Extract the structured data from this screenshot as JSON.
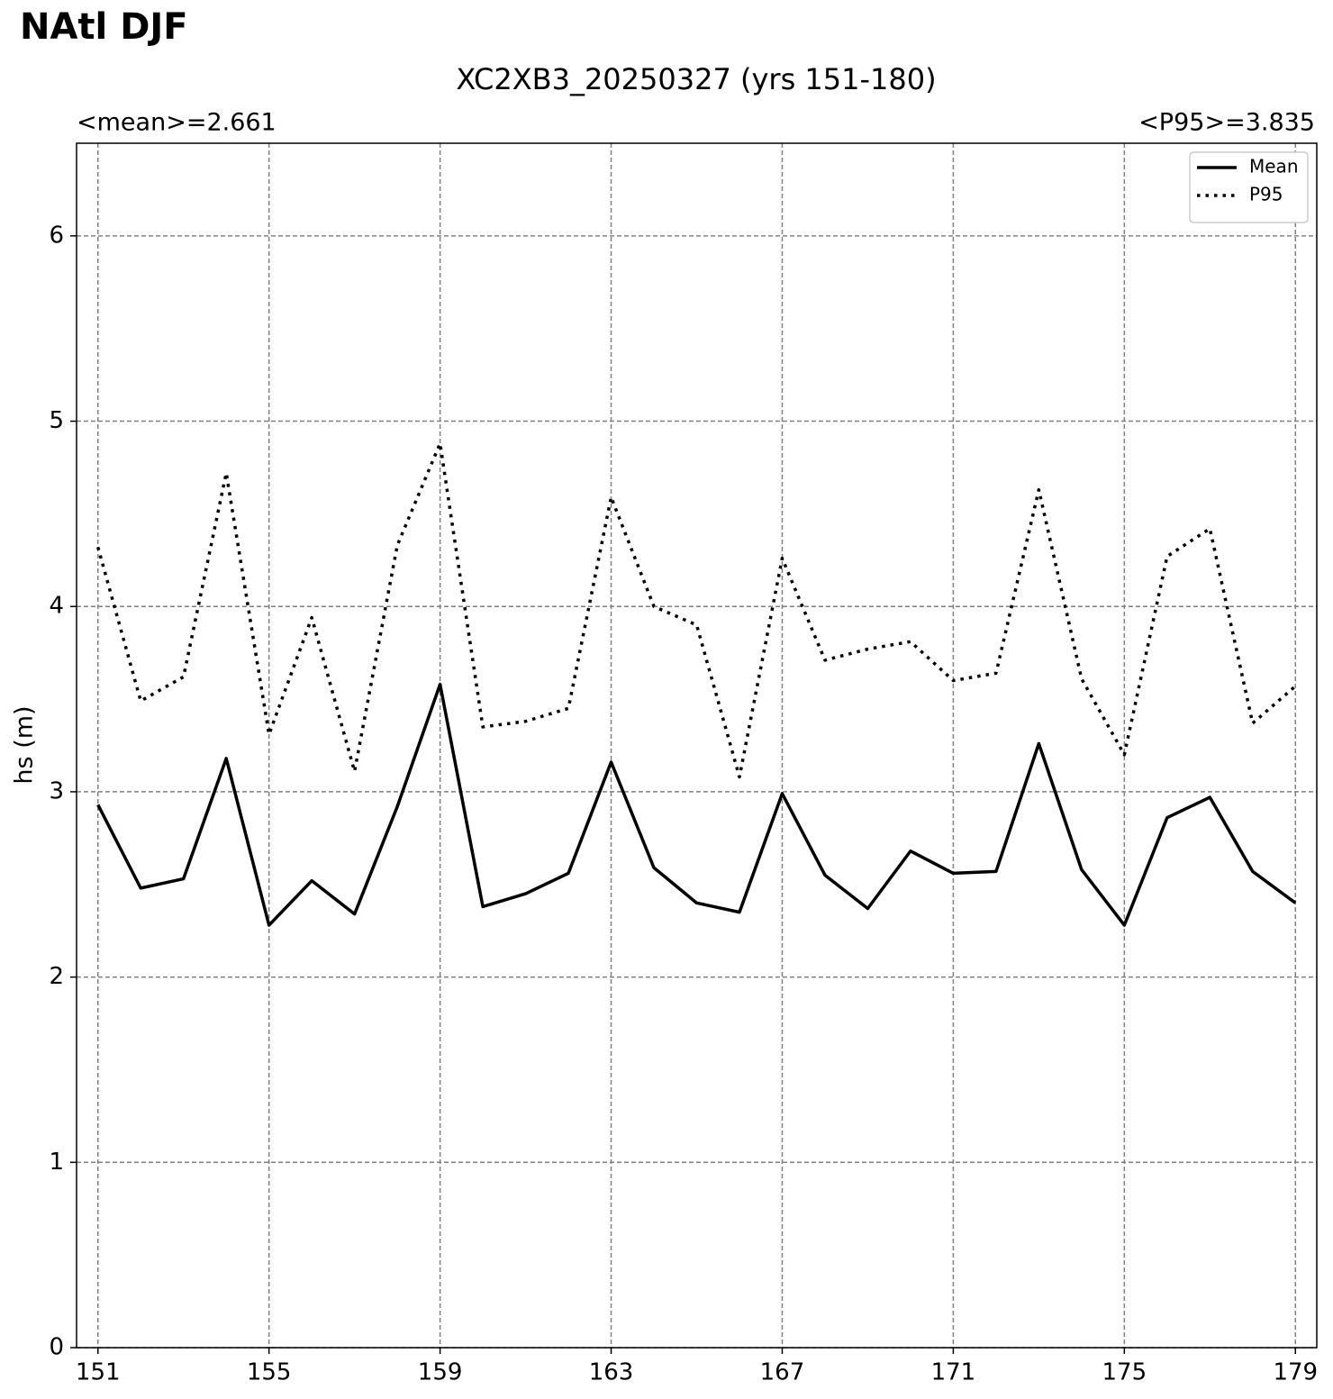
{
  "chart_data": {
    "type": "line",
    "suptitle": "NAtl DJF",
    "title": "XC2XB3_20250327 (yrs 151-180)",
    "left_title": "<mean>=2.661",
    "right_title": "<P95>=3.835",
    "ylabel": "hs (m)",
    "x": [
      151,
      152,
      153,
      154,
      155,
      156,
      157,
      158,
      159,
      160,
      161,
      162,
      163,
      164,
      165,
      166,
      167,
      168,
      169,
      170,
      171,
      172,
      173,
      174,
      175,
      176,
      177,
      178,
      179
    ],
    "series": [
      {
        "name": "Mean",
        "color": "#000000",
        "linestyle": "solid",
        "values": [
          2.93,
          2.48,
          2.53,
          3.18,
          2.28,
          2.52,
          2.34,
          2.92,
          3.58,
          2.38,
          2.45,
          2.56,
          3.16,
          2.59,
          2.4,
          2.35,
          2.99,
          2.55,
          2.37,
          2.68,
          2.56,
          2.57,
          3.26,
          2.58,
          2.28,
          2.86,
          2.97,
          2.57,
          2.4
        ]
      },
      {
        "name": "P95",
        "color": "#000000",
        "linestyle": "dotted",
        "values": [
          4.32,
          3.49,
          3.62,
          4.72,
          3.31,
          3.94,
          3.11,
          4.33,
          4.88,
          3.35,
          3.38,
          3.45,
          4.59,
          4.0,
          3.9,
          3.08,
          4.26,
          3.71,
          3.77,
          3.81,
          3.6,
          3.64,
          4.63,
          3.61,
          3.2,
          4.27,
          4.42,
          3.37,
          3.57
        ]
      }
    ],
    "xlim": [
      150.5,
      179.5
    ],
    "xticks": [
      151,
      155,
      159,
      163,
      167,
      171,
      175,
      179
    ],
    "ylim": [
      0,
      6.5
    ],
    "yticks": [
      0,
      1,
      2,
      3,
      4,
      5,
      6
    ],
    "grid": true,
    "legend": "upper right"
  }
}
